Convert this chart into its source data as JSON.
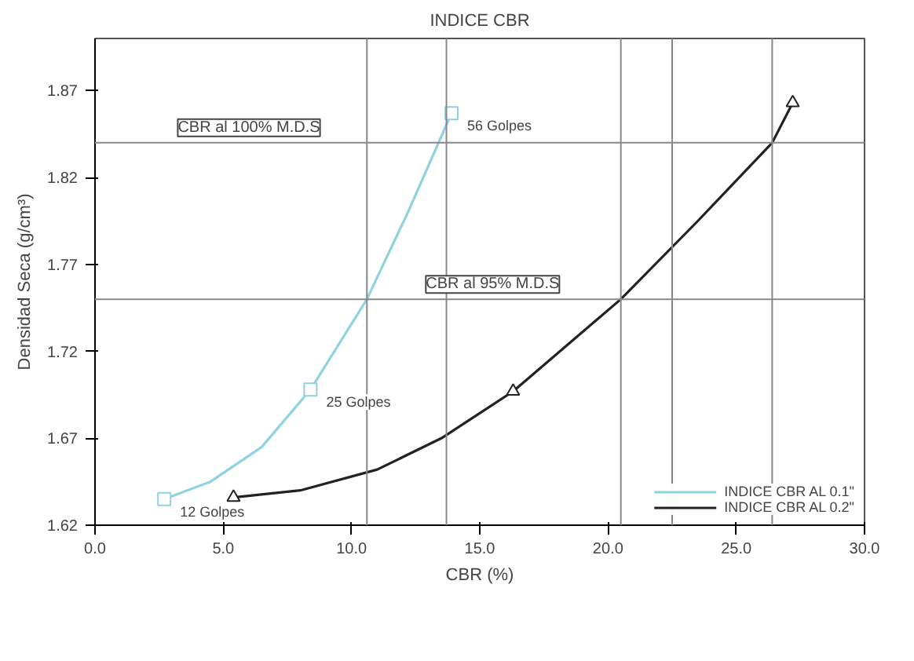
{
  "chart_data": {
    "type": "line",
    "title": "INDICE CBR",
    "xlabel": "CBR (%)",
    "ylabel": "Densidad Seca (g/cm³)",
    "series": [
      {
        "name": "INDICE CBR AL 0.1\"",
        "color": "#8fd3e0",
        "x": [
          2.7,
          4.5,
          6.5,
          8.4,
          10.6,
          12.2,
          13.9
        ],
        "values": [
          1.635,
          1.645,
          1.665,
          1.698,
          1.75,
          1.8,
          1.857
        ]
      },
      {
        "name": "INDICE CBR AL 0.2\"",
        "color": "#222222",
        "x": [
          5.4,
          8.0,
          11.0,
          13.5,
          16.3,
          20.5,
          23.5,
          26.4,
          27.2
        ],
        "values": [
          1.636,
          1.64,
          1.652,
          1.67,
          1.697,
          1.75,
          1.795,
          1.84,
          1.863
        ]
      },
      {
        "type": "scatter",
        "color": "#8fd3e0",
        "x": [
          2.7,
          8.4,
          13.9
        ],
        "values": [
          1.635,
          1.698,
          1.857
        ],
        "marker": "square"
      },
      {
        "type": "scatter",
        "color": "#222222",
        "x": [
          5.4,
          16.3,
          27.2
        ],
        "values": [
          1.636,
          1.697,
          1.863
        ],
        "marker": "triangle"
      }
    ],
    "xlim": [
      0,
      30
    ],
    "ylim": [
      1.62,
      1.9
    ],
    "xticks": [
      {
        "value": 0,
        "label": "0.0"
      },
      {
        "value": 5,
        "label": "5.0"
      },
      {
        "value": 10,
        "label": "10.0"
      },
      {
        "value": 15,
        "label": "15.0"
      },
      {
        "value": 20,
        "label": "20.0"
      },
      {
        "value": 25,
        "label": "25.0"
      },
      {
        "value": 30,
        "label": "30.0"
      }
    ],
    "yticks": [
      1.62,
      1.67,
      1.72,
      1.77,
      1.82,
      1.87
    ],
    "ref_lines": [
      {
        "axis": "y",
        "value": 1.84,
        "label": "CBR al 100% M.D.S"
      },
      {
        "axis": "y",
        "value": 1.75,
        "label": "CBR al 95% M.D.S"
      },
      {
        "axis": "x",
        "value": 10.6,
        "label": null
      },
      {
        "axis": "x",
        "value": 13.7,
        "label": null
      },
      {
        "axis": "x",
        "value": 20.5,
        "label": null
      },
      {
        "axis": "x",
        "value": 22.5,
        "label": null
      },
      {
        "axis": "x",
        "value": 26.4,
        "label": null
      }
    ],
    "annotations": [
      {
        "text": "56 Golpes",
        "x": 13.9,
        "y": 1.857
      },
      {
        "text": "25 Golpes",
        "x": 8.4,
        "y": 1.698
      },
      {
        "text": "12 Golpes",
        "x": 2.7,
        "y": 1.635
      }
    ],
    "grid": false,
    "legend": "bottom right"
  }
}
